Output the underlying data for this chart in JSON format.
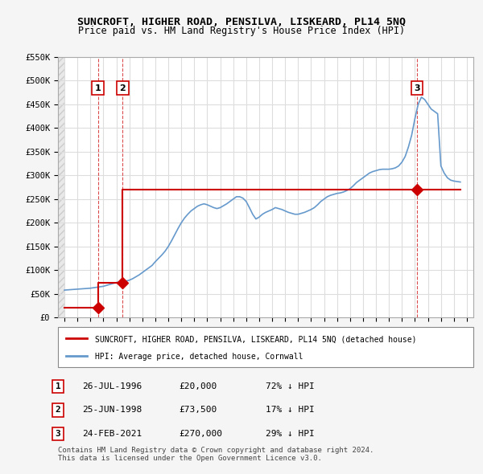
{
  "title": "SUNCROFT, HIGHER ROAD, PENSILVA, LISKEARD, PL14 5NQ",
  "subtitle": "Price paid vs. HM Land Registry's House Price Index (HPI)",
  "ylabel_ticks": [
    "£0",
    "£50K",
    "£100K",
    "£150K",
    "£200K",
    "£250K",
    "£300K",
    "£350K",
    "£400K",
    "£450K",
    "£500K",
    "£550K"
  ],
  "ytick_values": [
    0,
    50000,
    100000,
    150000,
    200000,
    250000,
    300000,
    350000,
    400000,
    450000,
    500000,
    550000
  ],
  "xlim": [
    1993.5,
    2025.5
  ],
  "ylim": [
    0,
    550000
  ],
  "grid_color": "#dddddd",
  "hatch_color": "#e0e0e0",
  "bg_color": "#f0f0f0",
  "plot_bg": "#ffffff",
  "transactions": [
    {
      "id": 1,
      "date": 1996.57,
      "price": 20000,
      "label": "1",
      "marker_color": "#cc0000"
    },
    {
      "id": 2,
      "date": 1998.48,
      "price": 73500,
      "label": "2",
      "marker_color": "#cc0000"
    },
    {
      "id": 3,
      "date": 2021.15,
      "price": 270000,
      "label": "3",
      "marker_color": "#cc0000"
    }
  ],
  "sale_line_color": "#cc0000",
  "hpi_line_color": "#6699cc",
  "transaction_vline_color": "#cc0000",
  "legend_house_label": "SUNCROFT, HIGHER ROAD, PENSILVA, LISKEARD, PL14 5NQ (detached house)",
  "legend_hpi_label": "HPI: Average price, detached house, Cornwall",
  "table_rows": [
    {
      "num": "1",
      "date": "26-JUL-1996",
      "price": "£20,000",
      "hpi": "72% ↓ HPI"
    },
    {
      "num": "2",
      "date": "25-JUN-1998",
      "price": "£73,500",
      "hpi": "17% ↓ HPI"
    },
    {
      "num": "3",
      "date": "24-FEB-2021",
      "price": "£270,000",
      "hpi": "29% ↓ HPI"
    }
  ],
  "footer": "Contains HM Land Registry data © Crown copyright and database right 2024.\nThis data is licensed under the Open Government Licence v3.0.",
  "hpi_data_years": [
    1994,
    1994.25,
    1994.5,
    1994.75,
    1995,
    1995.25,
    1995.5,
    1995.75,
    1996,
    1996.25,
    1996.5,
    1996.75,
    1997,
    1997.25,
    1997.5,
    1997.75,
    1998,
    1998.25,
    1998.5,
    1998.75,
    1999,
    1999.25,
    1999.5,
    1999.75,
    2000,
    2000.25,
    2000.5,
    2000.75,
    2001,
    2001.25,
    2001.5,
    2001.75,
    2002,
    2002.25,
    2002.5,
    2002.75,
    2003,
    2003.25,
    2003.5,
    2003.75,
    2004,
    2004.25,
    2004.5,
    2004.75,
    2005,
    2005.25,
    2005.5,
    2005.75,
    2006,
    2006.25,
    2006.5,
    2006.75,
    2007,
    2007.25,
    2007.5,
    2007.75,
    2008,
    2008.25,
    2008.5,
    2008.75,
    2009,
    2009.25,
    2009.5,
    2009.75,
    2010,
    2010.25,
    2010.5,
    2010.75,
    2011,
    2011.25,
    2011.5,
    2011.75,
    2012,
    2012.25,
    2012.5,
    2012.75,
    2013,
    2013.25,
    2013.5,
    2013.75,
    2014,
    2014.25,
    2014.5,
    2014.75,
    2015,
    2015.25,
    2015.5,
    2015.75,
    2016,
    2016.25,
    2016.5,
    2016.75,
    2017,
    2017.25,
    2017.5,
    2017.75,
    2018,
    2018.25,
    2018.5,
    2018.75,
    2019,
    2019.25,
    2019.5,
    2019.75,
    2020,
    2020.25,
    2020.5,
    2020.75,
    2021,
    2021.25,
    2021.5,
    2021.75,
    2022,
    2022.25,
    2022.5,
    2022.75,
    2023,
    2023.25,
    2023.5,
    2023.75,
    2024,
    2024.25,
    2024.5
  ],
  "hpi_data_values": [
    58000,
    58500,
    59000,
    59500,
    60000,
    60500,
    61000,
    61500,
    62000,
    63000,
    64000,
    65000,
    66000,
    68000,
    70000,
    72000,
    74000,
    75000,
    76000,
    77000,
    79000,
    82000,
    86000,
    90000,
    95000,
    100000,
    105000,
    110000,
    118000,
    125000,
    132000,
    140000,
    150000,
    162000,
    175000,
    188000,
    200000,
    210000,
    218000,
    225000,
    230000,
    235000,
    238000,
    240000,
    238000,
    235000,
    232000,
    230000,
    232000,
    236000,
    240000,
    245000,
    250000,
    255000,
    255000,
    252000,
    245000,
    232000,
    218000,
    208000,
    212000,
    218000,
    222000,
    225000,
    228000,
    232000,
    230000,
    228000,
    225000,
    222000,
    220000,
    218000,
    218000,
    220000,
    222000,
    225000,
    228000,
    232000,
    238000,
    245000,
    250000,
    255000,
    258000,
    260000,
    262000,
    263000,
    265000,
    268000,
    272000,
    278000,
    285000,
    290000,
    295000,
    300000,
    305000,
    308000,
    310000,
    312000,
    313000,
    313000,
    313000,
    314000,
    316000,
    320000,
    328000,
    340000,
    360000,
    385000,
    420000,
    450000,
    465000,
    460000,
    450000,
    440000,
    435000,
    430000,
    320000,
    305000,
    295000,
    290000,
    288000,
    287000,
    286000
  ],
  "sold_line_years": [
    1994,
    1996.57,
    1996.57,
    1998.48,
    1998.48,
    2021.15,
    2021.15,
    2024.5
  ],
  "sold_line_values": [
    20000,
    20000,
    73500,
    73500,
    270000,
    270000,
    270000,
    270000
  ]
}
